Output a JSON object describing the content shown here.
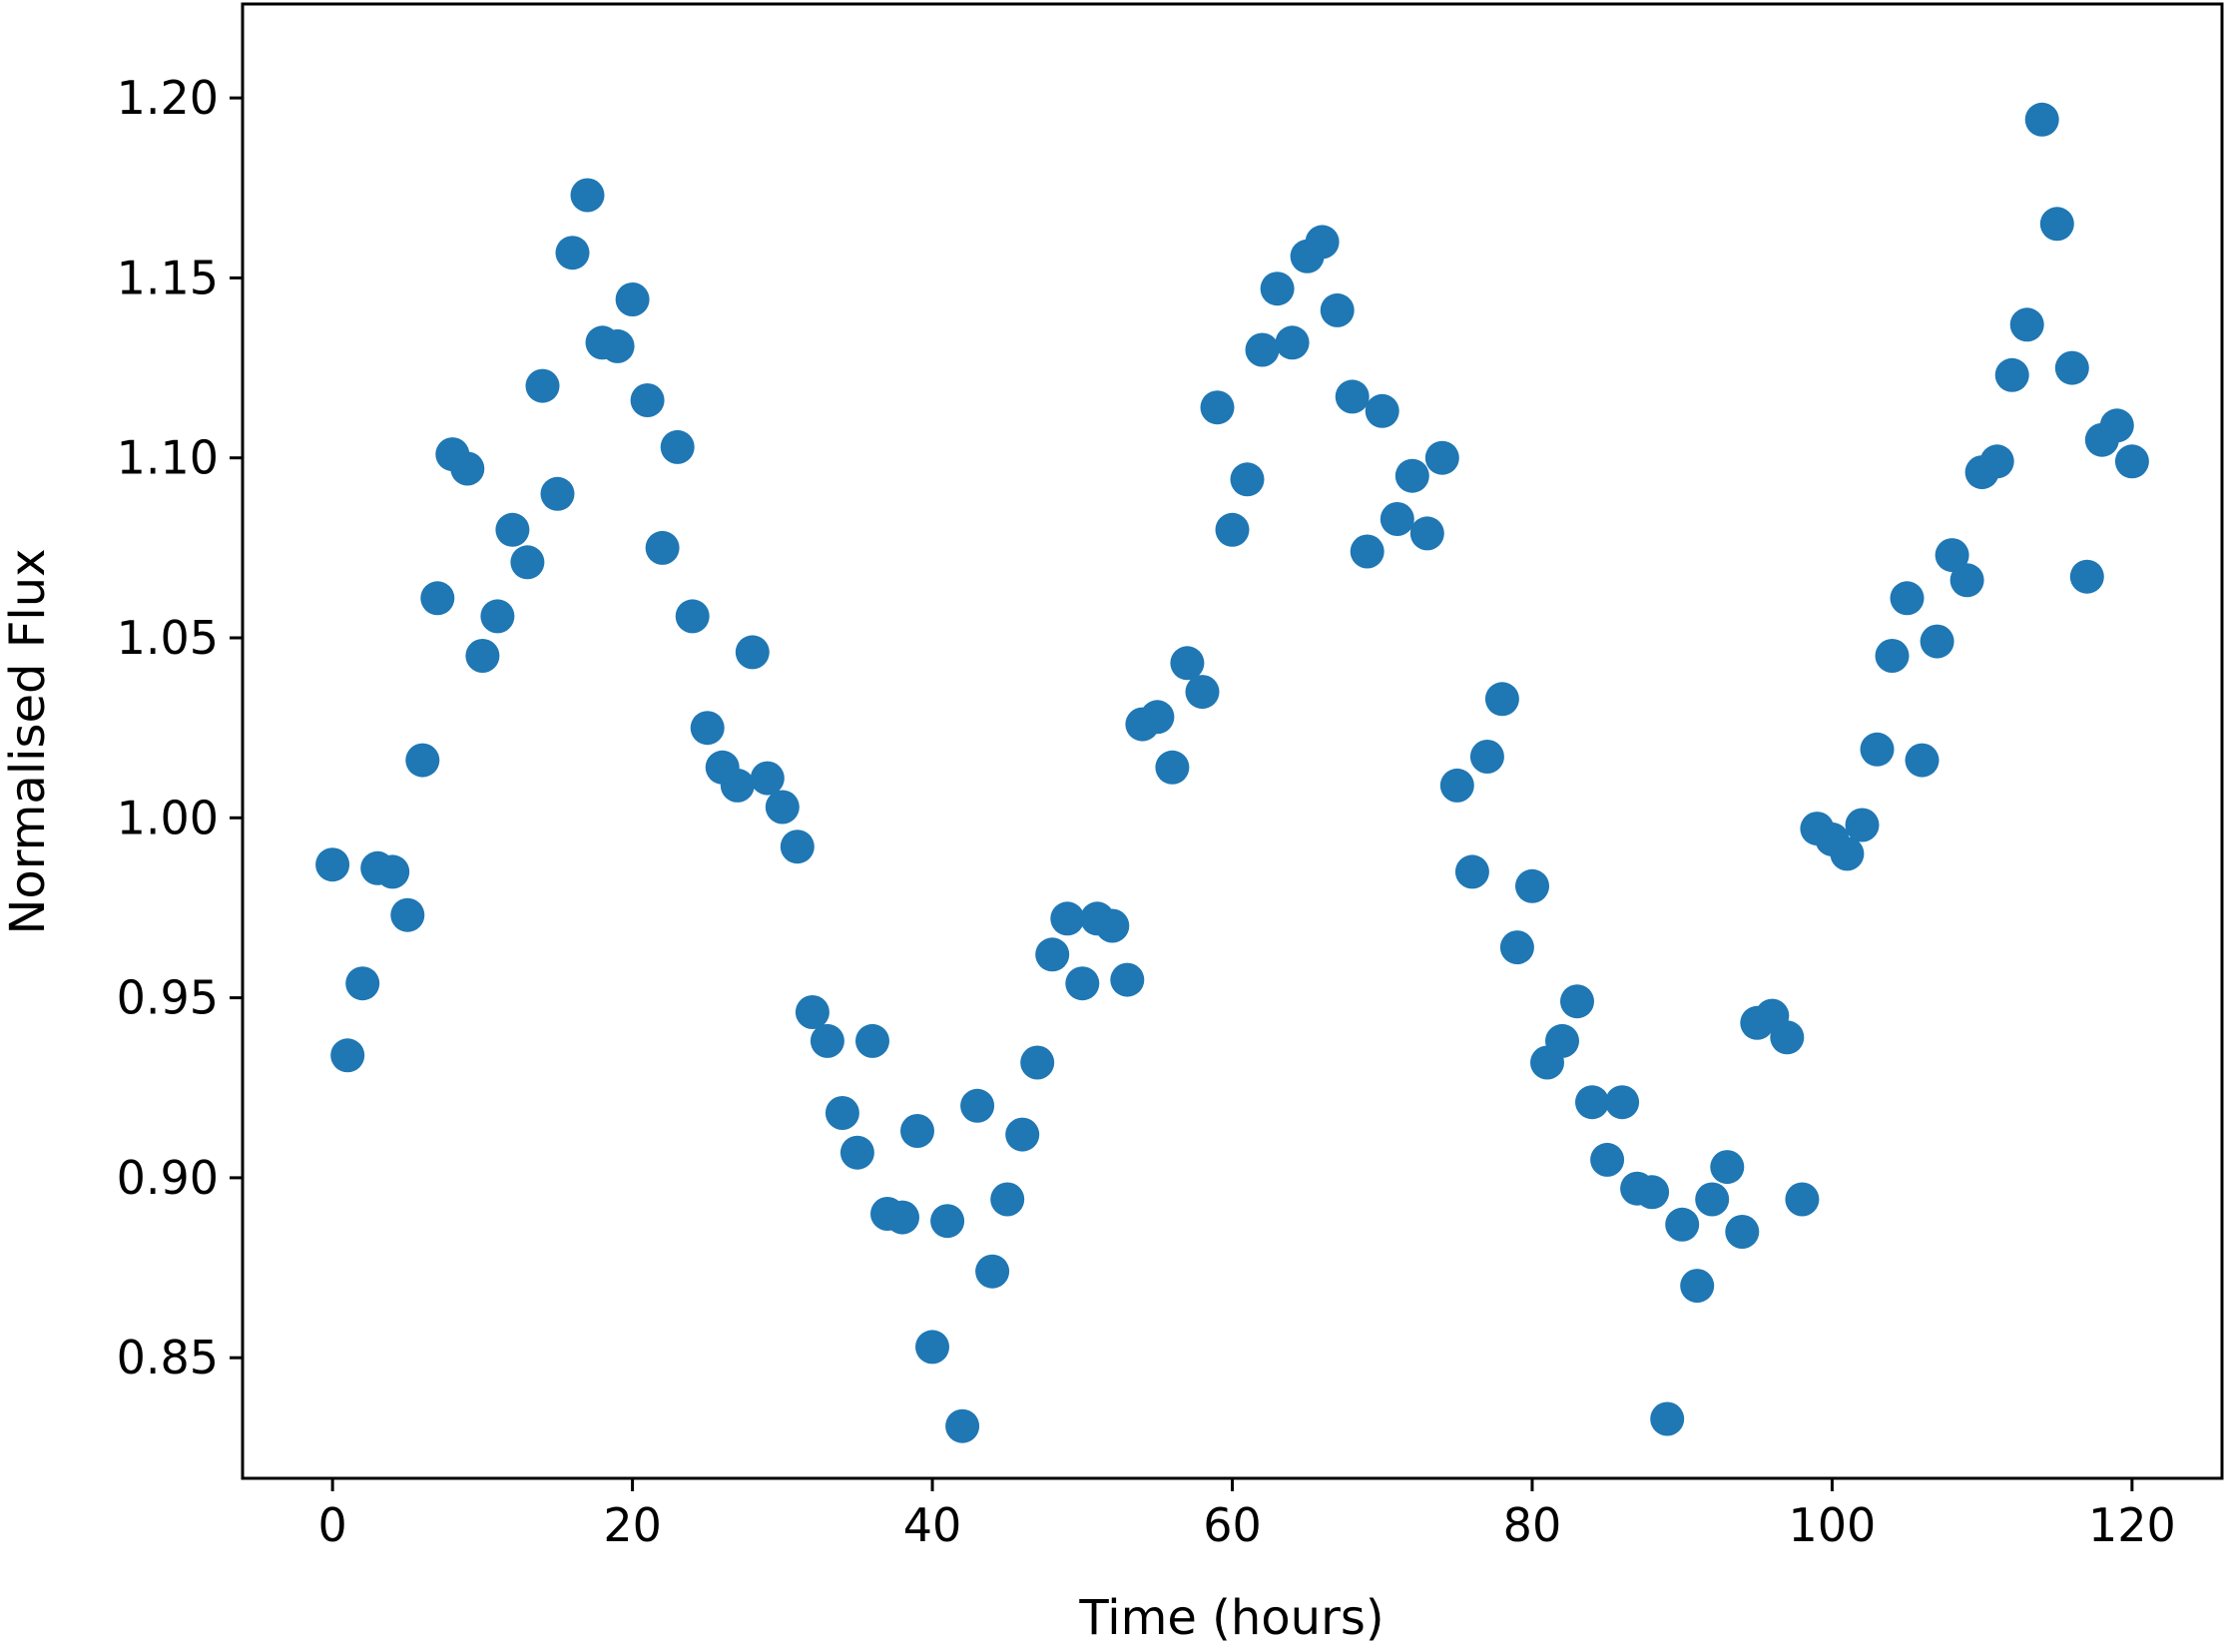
{
  "chart_data": {
    "type": "scatter",
    "xlabel": "Time (hours)",
    "ylabel": "Normalised Flux",
    "xlim": [
      -6,
      126
    ],
    "ylim": [
      0.8165,
      1.2261
    ],
    "x_ticks": [
      0,
      20,
      40,
      60,
      80,
      100,
      120
    ],
    "x_tick_labels": [
      "0",
      "20",
      "40",
      "60",
      "80",
      "100",
      "120"
    ],
    "y_ticks": [
      0.85,
      0.9,
      0.95,
      1.0,
      1.05,
      1.1,
      1.15,
      1.2
    ],
    "y_tick_labels": [
      "0.85",
      "0.90",
      "0.95",
      "1.00",
      "1.05",
      "1.10",
      "1.15",
      "1.20"
    ],
    "grid": false,
    "marker_color": "#1f77b4",
    "series": [
      {
        "x": [
          0,
          1,
          2,
          3,
          4,
          5,
          6,
          7,
          8,
          9,
          10,
          11,
          12,
          13,
          14,
          15,
          16,
          17,
          18,
          19,
          20,
          21,
          22,
          23,
          24,
          25,
          26,
          27,
          28,
          29,
          30,
          31,
          32,
          33,
          34,
          35,
          36,
          37,
          38,
          39,
          40,
          41,
          42,
          43,
          44,
          45,
          46,
          47,
          48,
          49,
          50,
          51,
          52,
          53,
          54,
          55,
          56,
          57,
          58,
          59,
          60,
          61,
          62,
          63,
          64,
          65,
          66,
          67,
          68,
          69,
          70,
          71,
          72,
          73,
          74,
          75,
          76,
          77,
          78,
          79,
          80,
          81,
          82,
          83,
          84,
          85,
          86,
          87,
          88,
          89,
          90,
          91,
          92,
          93,
          94,
          95,
          96,
          97,
          98,
          99,
          100,
          101,
          102,
          103,
          104,
          105,
          106,
          107,
          108,
          109,
          110,
          111,
          112,
          113,
          114,
          115,
          116,
          117,
          118,
          119,
          120
        ],
        "y": [
          0.987,
          0.934,
          0.954,
          0.986,
          0.985,
          0.973,
          1.016,
          1.061,
          1.101,
          1.097,
          1.045,
          1.056,
          1.08,
          1.071,
          1.12,
          1.09,
          1.157,
          1.173,
          1.132,
          1.131,
          1.144,
          1.116,
          1.075,
          1.103,
          1.056,
          1.025,
          1.014,
          1.009,
          1.046,
          1.011,
          1.003,
          0.992,
          0.946,
          0.938,
          0.918,
          0.907,
          0.938,
          0.89,
          0.889,
          0.913,
          0.853,
          0.888,
          0.831,
          0.92,
          0.874,
          0.894,
          0.912,
          0.932,
          0.962,
          0.972,
          0.954,
          0.972,
          0.97,
          0.955,
          1.026,
          1.028,
          1.014,
          1.043,
          1.035,
          1.114,
          1.08,
          1.094,
          1.13,
          1.147,
          1.132,
          1.156,
          1.16,
          1.141,
          1.117,
          1.074,
          1.113,
          1.083,
          1.095,
          1.079,
          1.1,
          1.009,
          0.985,
          1.017,
          1.033,
          0.964,
          0.981,
          0.932,
          0.938,
          0.949,
          0.921,
          0.905,
          0.921,
          0.897,
          0.896,
          0.833,
          0.887,
          0.87,
          0.894,
          0.903,
          0.885,
          0.943,
          0.945,
          0.939,
          0.894,
          0.997,
          0.994,
          0.99,
          0.998,
          1.019,
          1.045,
          1.061,
          1.016,
          1.049,
          1.073,
          1.066,
          1.096,
          1.099,
          1.123,
          1.137,
          1.194,
          1.165,
          1.125,
          1.067,
          1.105,
          1.109,
          1.099
        ]
      }
    ]
  }
}
